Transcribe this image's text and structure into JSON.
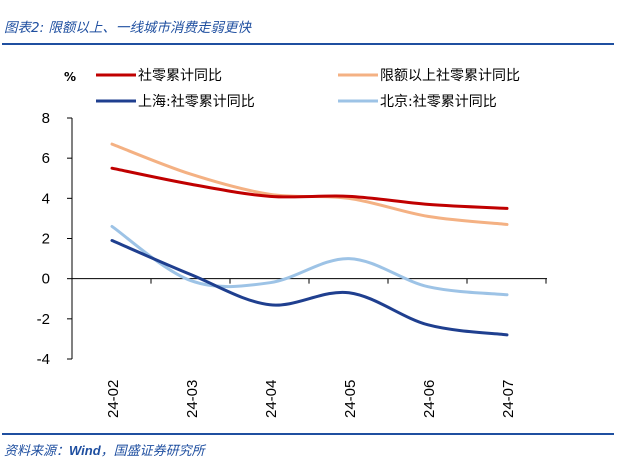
{
  "figure": {
    "title": "图表2: 限额以上、一线城市消费走弱更快",
    "source_prefix": "资料来源：",
    "source_wind": "Wind",
    "source_suffix": "，国盛证券研究所"
  },
  "colors": {
    "header_blue": "#1f4fa0"
  },
  "chart_data": {
    "type": "line",
    "unit_label": "%",
    "categories": [
      "24-02",
      "24-03",
      "24-04",
      "24-05",
      "24-06",
      "24-07"
    ],
    "ylim": [
      -4,
      8
    ],
    "yticks": [
      -4,
      -2,
      0,
      2,
      4,
      6,
      8
    ],
    "grid": false,
    "legend_position": "top",
    "series": [
      {
        "name": "社零累计同比",
        "color": "#c00000",
        "values": [
          5.5,
          4.7,
          4.1,
          4.1,
          3.7,
          3.5
        ]
      },
      {
        "name": "限额以上社零累计同比",
        "color": "#f4b183",
        "values": [
          6.7,
          5.2,
          4.2,
          4.0,
          3.1,
          2.7
        ]
      },
      {
        "name": "上海:社零累计同比",
        "color": "#1f3f8f",
        "values": [
          1.9,
          0.2,
          -1.3,
          -0.7,
          -2.3,
          -2.8
        ]
      },
      {
        "name": "北京:社零累计同比",
        "color": "#9dc3e6",
        "values": [
          2.6,
          -0.1,
          -0.2,
          1.0,
          -0.4,
          -0.8
        ]
      }
    ]
  }
}
